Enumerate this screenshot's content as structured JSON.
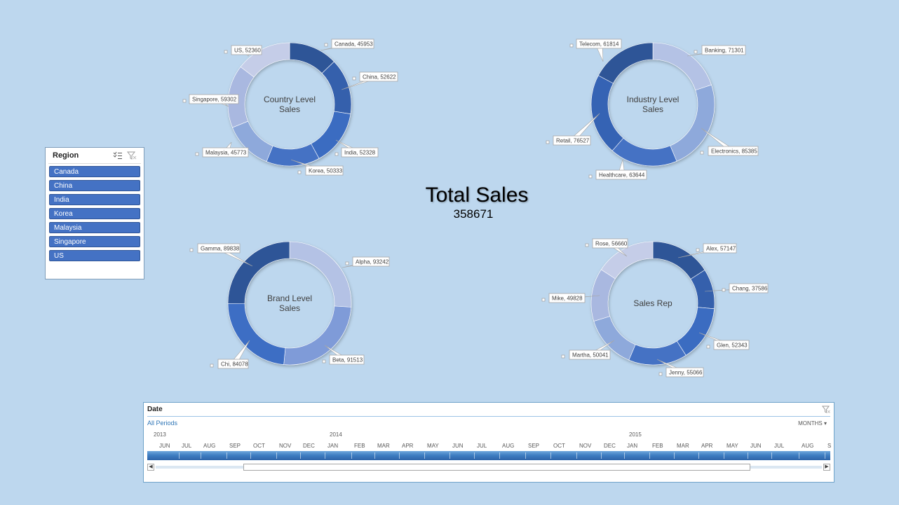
{
  "colors": {
    "background": "#bdd7ee",
    "slicer_item": "#4472c4",
    "palette": [
      "#2f5597",
      "#3564b0",
      "#3e6ec4",
      "#4472c4",
      "#8ea9db",
      "#a9b8e0",
      "#c5cde8"
    ]
  },
  "total": {
    "title": "Total Sales",
    "value": "358671"
  },
  "slicer": {
    "title": "Region",
    "items": [
      "Canada",
      "China",
      "India",
      "Korea",
      "Malaysia",
      "Singapore",
      "US"
    ]
  },
  "timeline": {
    "title": "Date",
    "all_periods": "All Periods",
    "level": "MONTHS",
    "years": [
      "2013",
      "2014",
      "2015"
    ],
    "months": [
      "JUN",
      "JUL",
      "AUG",
      "SEP",
      "OCT",
      "NOV",
      "DEC",
      "JAN",
      "FEB",
      "MAR",
      "APR",
      "MAY",
      "JUN",
      "JUL",
      "AUG",
      "SEP",
      "OCT",
      "NOV",
      "DEC",
      "JAN",
      "FEB",
      "MAR",
      "APR",
      "MAY",
      "JUN",
      "JUL",
      "AUG",
      "S"
    ]
  },
  "chart_data": [
    {
      "type": "pie",
      "title": "Country Level Sales",
      "labels": [
        "Canada",
        "China",
        "India",
        "Korea",
        "Malaysia",
        "Singapore",
        "US"
      ],
      "values": [
        45953,
        52622,
        52328,
        50333,
        45773,
        59302,
        52360
      ],
      "colors": [
        "#2f5597",
        "#3461ac",
        "#3b6cc1",
        "#4472c4",
        "#8ea9db",
        "#a9b8e0",
        "#c5cde8"
      ]
    },
    {
      "type": "pie",
      "title": "Industry Level Sales",
      "labels": [
        "Banking",
        "Electronics",
        "Healthcare",
        "Retail",
        "Telecom"
      ],
      "values": [
        71301,
        85385,
        63644,
        76527,
        61814
      ],
      "colors": [
        "#b4c2e5",
        "#8ea9db",
        "#4472c4",
        "#3663b4",
        "#2f5597"
      ]
    },
    {
      "type": "pie",
      "title": "Brand Level Sales",
      "labels": [
        "Alpha",
        "Beta",
        "Chi",
        "Gamma"
      ],
      "values": [
        93242,
        91513,
        84078,
        89838
      ],
      "colors": [
        "#b4c2e5",
        "#7f9bd8",
        "#3e6ec4",
        "#2f5597"
      ]
    },
    {
      "type": "pie",
      "title": "Sales Rep",
      "labels": [
        "Alex",
        "Chang",
        "Glen",
        "Jenny",
        "Martha",
        "Mike",
        "Rose"
      ],
      "values": [
        57147,
        37586,
        52343,
        55066,
        50041,
        49828,
        56660
      ],
      "colors": [
        "#2f5597",
        "#3461ac",
        "#3b6cc1",
        "#4472c4",
        "#8ea9db",
        "#a9b8e0",
        "#c5cde8"
      ]
    }
  ]
}
